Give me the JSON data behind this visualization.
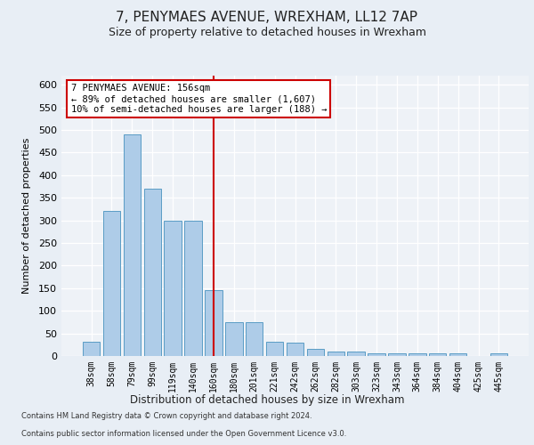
{
  "title": "7, PENYMAES AVENUE, WREXHAM, LL12 7AP",
  "subtitle": "Size of property relative to detached houses in Wrexham",
  "xlabel": "Distribution of detached houses by size in Wrexham",
  "ylabel": "Number of detached properties",
  "categories": [
    "38sqm",
    "58sqm",
    "79sqm",
    "99sqm",
    "119sqm",
    "140sqm",
    "160sqm",
    "180sqm",
    "201sqm",
    "221sqm",
    "242sqm",
    "262sqm",
    "282sqm",
    "303sqm",
    "323sqm",
    "343sqm",
    "364sqm",
    "384sqm",
    "404sqm",
    "425sqm",
    "445sqm"
  ],
  "values": [
    32,
    320,
    490,
    370,
    300,
    300,
    145,
    75,
    75,
    32,
    30,
    15,
    10,
    10,
    5,
    5,
    5,
    5,
    5,
    0,
    5
  ],
  "bar_color": "#aecce8",
  "bar_edge_color": "#5a9cc5",
  "vline_x": 6,
  "vline_color": "#cc0000",
  "annotation_line1": "7 PENYMAES AVENUE: 156sqm",
  "annotation_line2": "← 89% of detached houses are smaller (1,607)",
  "annotation_line3": "10% of semi-detached houses are larger (188) →",
  "annotation_box_color": "#ffffff",
  "annotation_box_edge": "#cc0000",
  "footnote1": "Contains HM Land Registry data © Crown copyright and database right 2024.",
  "footnote2": "Contains public sector information licensed under the Open Government Licence v3.0.",
  "bg_color": "#e8eef5",
  "plot_bg_color": "#eef2f7",
  "ylim": [
    0,
    620
  ],
  "yticks": [
    0,
    50,
    100,
    150,
    200,
    250,
    300,
    350,
    400,
    450,
    500,
    550,
    600
  ]
}
